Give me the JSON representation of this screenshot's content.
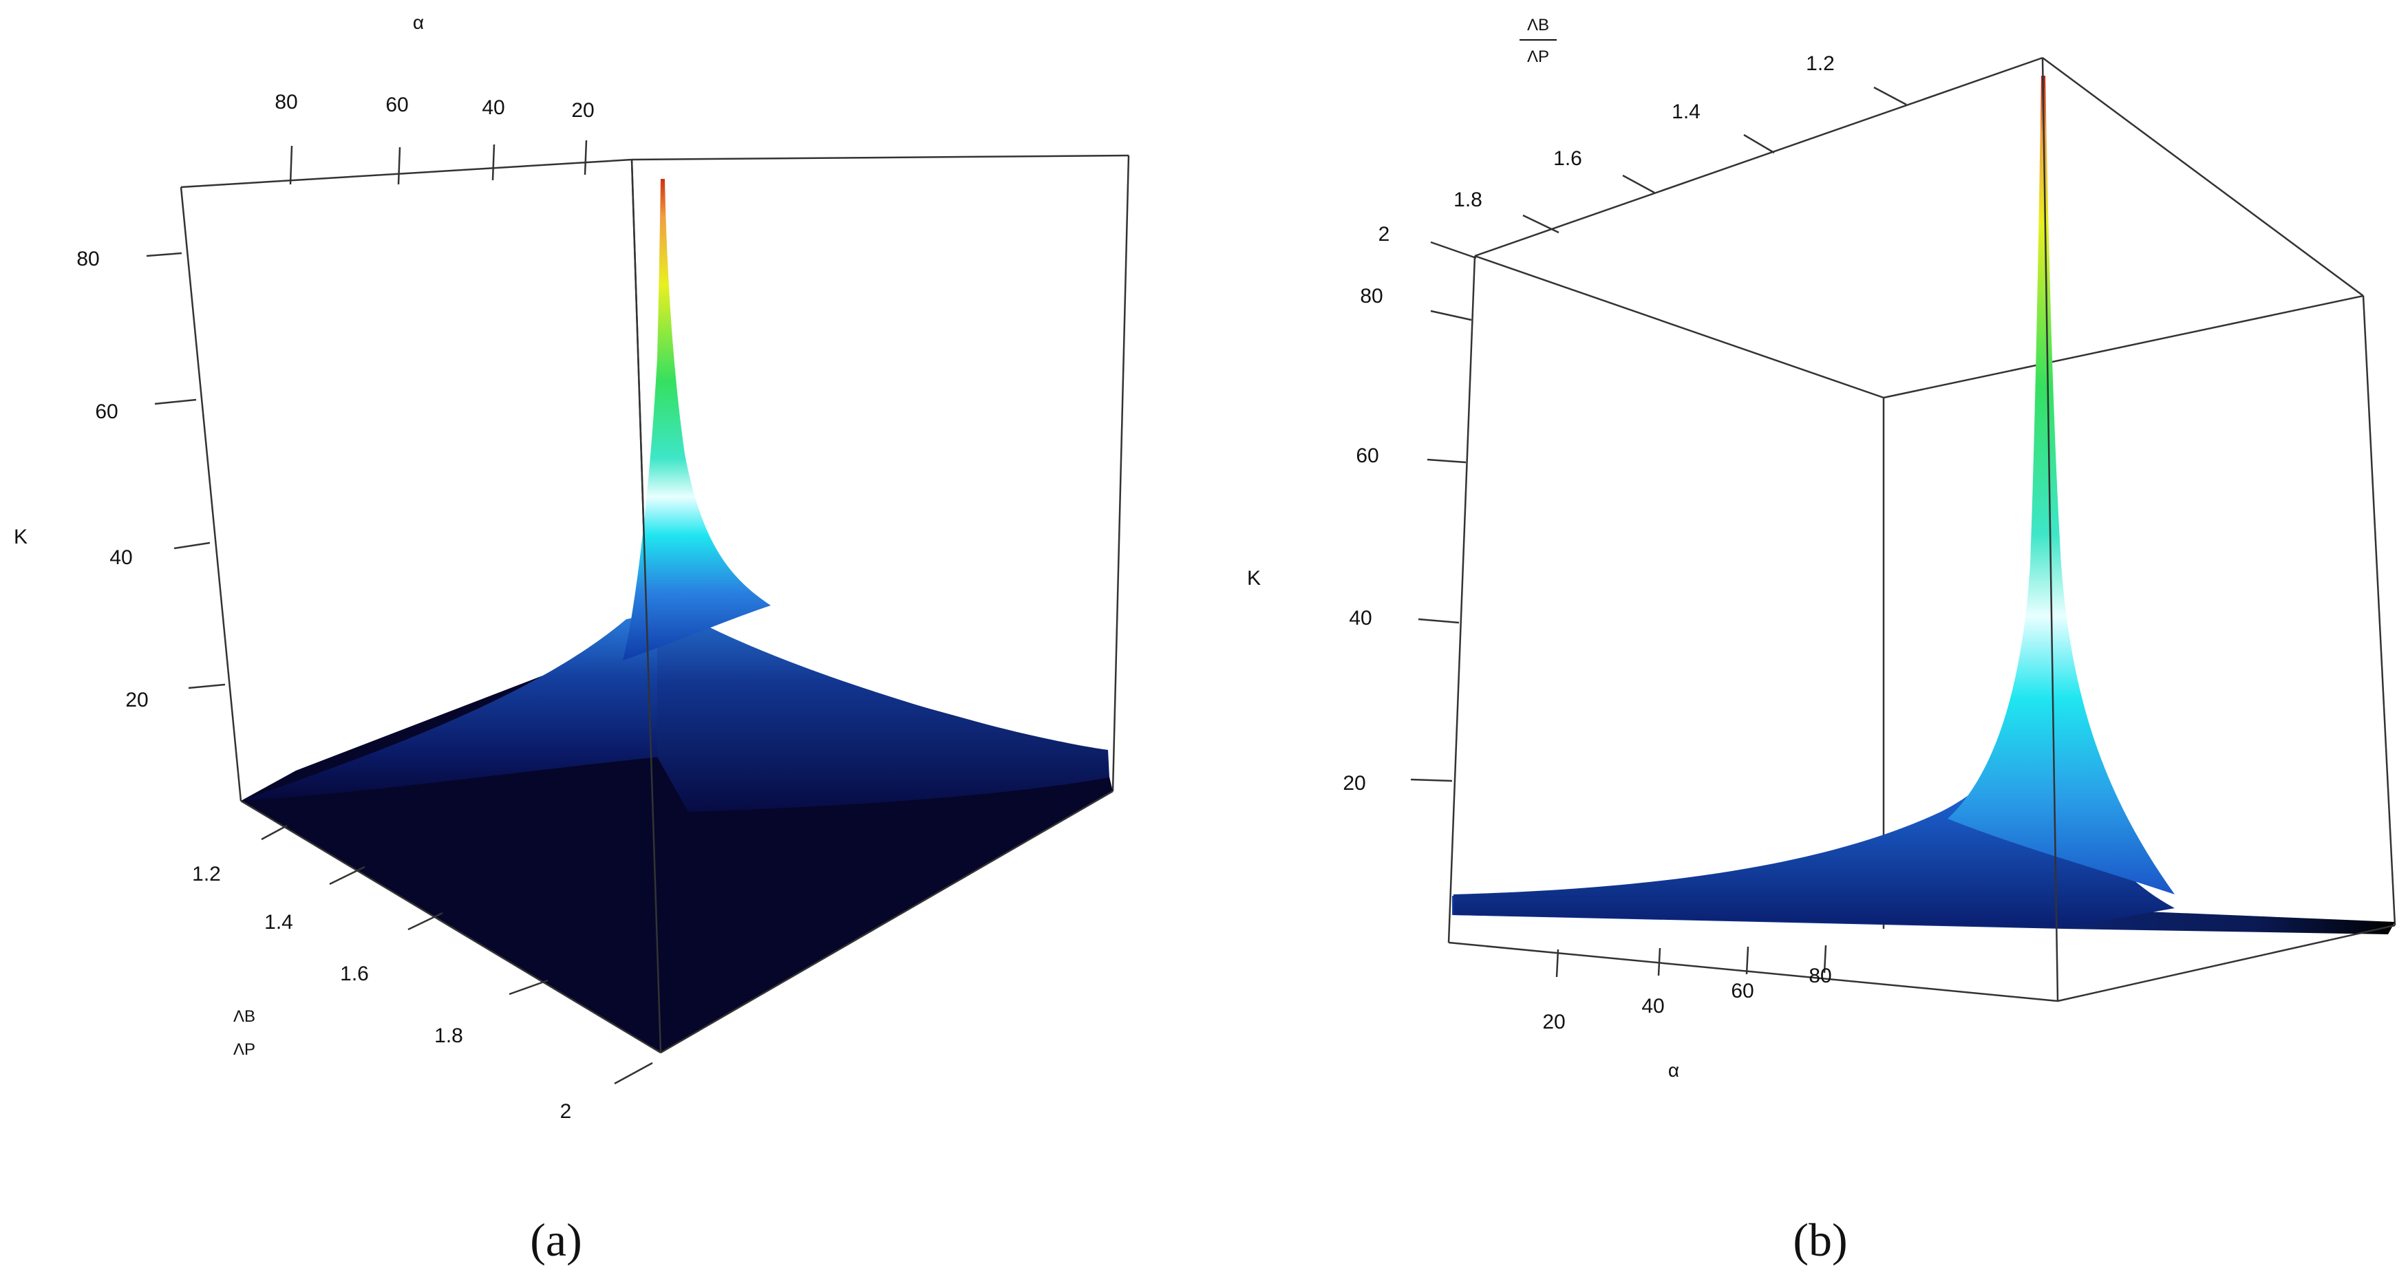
{
  "chart_data": [
    {
      "type": "surface3d",
      "panel_label": "(a)",
      "x_axis": {
        "label": "α",
        "ticks": [
          "20",
          "40",
          "60",
          "80"
        ]
      },
      "y_axis": {
        "label_num": "ΛB",
        "label_den": "ΛP",
        "ticks": [
          "1.2",
          "1.4",
          "1.6",
          "1.8",
          "2"
        ]
      },
      "z_axis": {
        "label": "K",
        "ticks": [
          "20",
          "40",
          "60",
          "80"
        ]
      },
      "colorscale": [
        "#05062e",
        "#0a1a66",
        "#0f3ba8",
        "#2a7fe0",
        "#20e6f0",
        "#e8ffff",
        "#35e060",
        "#b0e840",
        "#f0f020",
        "#d03010"
      ]
    },
    {
      "type": "surface3d",
      "panel_label": "(b)",
      "x_axis": {
        "label": "α",
        "ticks": [
          "20",
          "40",
          "60",
          "80"
        ]
      },
      "y_axis": {
        "label_num": "ΛB",
        "label_den": "ΛP",
        "ticks": [
          "1.2",
          "1.4",
          "1.6",
          "1.8",
          "2"
        ]
      },
      "z_axis": {
        "label": "K",
        "ticks": [
          "20",
          "40",
          "60",
          "80"
        ]
      },
      "colorscale": [
        "#05062e",
        "#0a1a66",
        "#0f3ba8",
        "#2a7fe0",
        "#20e6f0",
        "#e8ffff",
        "#35e060",
        "#b0e840",
        "#f0f020",
        "#d03010"
      ]
    }
  ]
}
